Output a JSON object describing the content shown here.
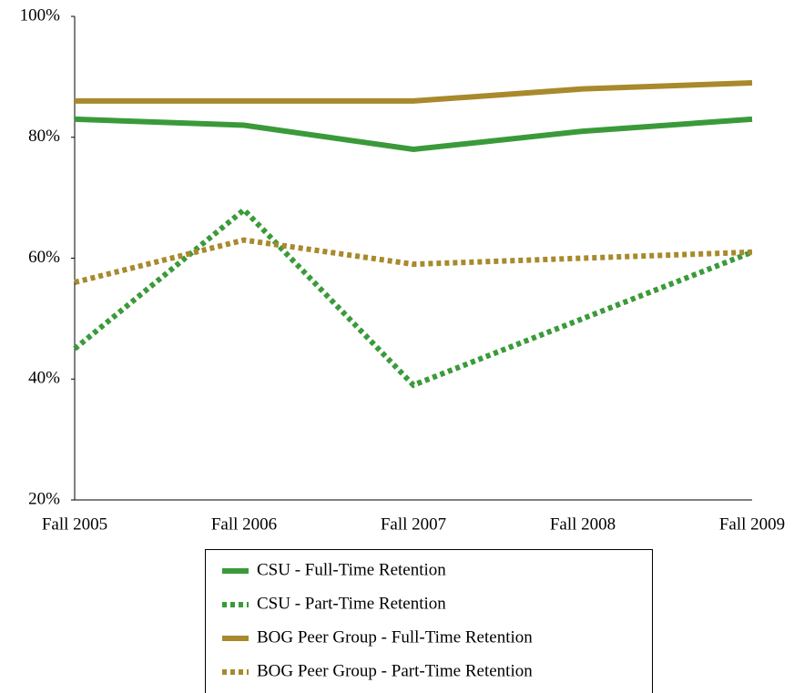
{
  "chart_data": {
    "type": "line",
    "categories": [
      "Fall 2005",
      "Fall 2006",
      "Fall 2007",
      "Fall 2008",
      "Fall 2009"
    ],
    "series": [
      {
        "name": "CSU - Full-Time Retention",
        "color": "#3a9a3a",
        "style": "solid",
        "values": [
          83,
          82,
          78,
          81,
          83
        ]
      },
      {
        "name": "CSU - Part-Time Retention",
        "color": "#3a9a3a",
        "style": "dotted",
        "values": [
          45,
          68,
          39,
          50,
          61
        ]
      },
      {
        "name": "BOG Peer Group - Full-Time Retention",
        "color": "#a8892c",
        "style": "solid",
        "values": [
          86,
          86,
          86,
          88,
          89
        ]
      },
      {
        "name": "BOG Peer Group - Part-Time Retention",
        "color": "#a8892c",
        "style": "dotted",
        "values": [
          56,
          63,
          59,
          60,
          61
        ]
      }
    ],
    "ylim": [
      20,
      100
    ],
    "yticks": [
      {
        "value": 20,
        "label": "20%"
      },
      {
        "value": 40,
        "label": "40%"
      },
      {
        "value": 60,
        "label": "60%"
      },
      {
        "value": 80,
        "label": "80%"
      },
      {
        "value": 100,
        "label": "100%"
      }
    ],
    "grid": false,
    "legend": "bottom"
  }
}
